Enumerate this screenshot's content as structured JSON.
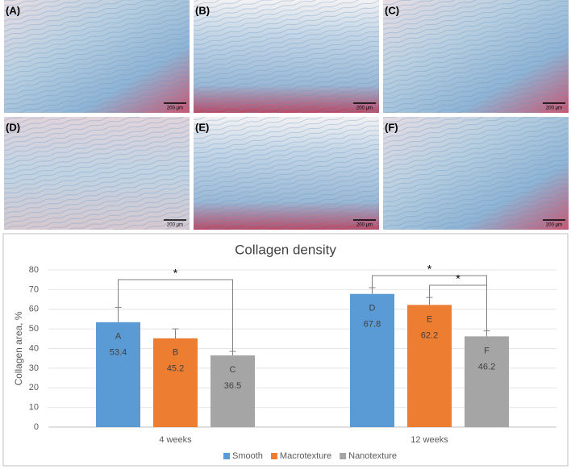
{
  "panels": [
    {
      "label": "(A)",
      "scale": "200 μm"
    },
    {
      "label": "(B)",
      "scale": "200 μm"
    },
    {
      "label": "(C)",
      "scale": "200 μm"
    },
    {
      "label": "(D)",
      "scale": "200 μm"
    },
    {
      "label": "(E)",
      "scale": "200 μm"
    },
    {
      "label": "(F)",
      "scale": "200 μm"
    }
  ],
  "chart_data": {
    "type": "bar",
    "title": "Collagen density",
    "ylabel": "Collagen area, %",
    "categories": [
      "4 weeks",
      "12 weeks"
    ],
    "series": [
      {
        "name": "Smooth",
        "color": "#5b9bd5",
        "values": [
          53.4,
          67.8
        ],
        "errors": [
          7.6,
          3.2
        ],
        "letters": [
          "A",
          "D"
        ]
      },
      {
        "name": "Macrotexture",
        "color": "#ed7d31",
        "values": [
          45.2,
          62.2
        ],
        "errors": [
          4.8,
          3.8
        ],
        "letters": [
          "B",
          "E"
        ]
      },
      {
        "name": "Nanotexture",
        "color": "#a5a5a5",
        "values": [
          36.5,
          46.2
        ],
        "errors": [
          2.0,
          2.8
        ],
        "letters": [
          "C",
          "F"
        ]
      }
    ],
    "annotations": [
      "*",
      "*",
      "*"
    ],
    "ylim": [
      0,
      80
    ],
    "yticks": [
      0,
      10,
      20,
      30,
      40,
      50,
      60,
      70,
      80
    ],
    "grid": true,
    "legend": "bottom"
  }
}
